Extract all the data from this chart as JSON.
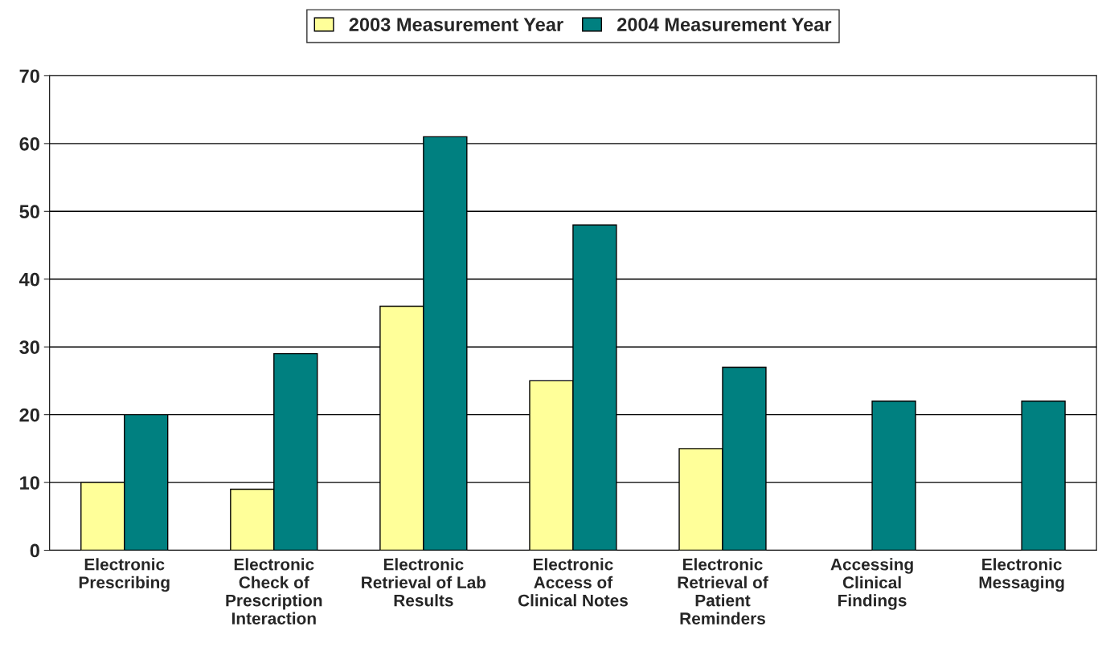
{
  "chart_data": {
    "type": "bar",
    "categories": [
      "Electronic\nPrescribing",
      "Electronic\nCheck of\nPrescription\nInteraction",
      "Electronic\nRetrieval of Lab\nResults",
      "Electronic\nAccess of\nClinical Notes",
      "Electronic\nRetrieval of\nPatient\nReminders",
      "Accessing\nClinical\nFindings",
      "Electronic\nMessaging"
    ],
    "series": [
      {
        "name": "2003 Measurement Year",
        "color": "#ffff99",
        "values": [
          10,
          9,
          36,
          25,
          15,
          null,
          null
        ]
      },
      {
        "name": "2004 Measurement Year",
        "color": "#008080",
        "values": [
          20,
          29,
          61,
          48,
          27,
          22,
          22
        ]
      }
    ],
    "ylim": [
      0,
      70
    ],
    "yticks": [
      0,
      10,
      20,
      30,
      40,
      50,
      60,
      70
    ],
    "grid": "y",
    "legend": "top"
  }
}
